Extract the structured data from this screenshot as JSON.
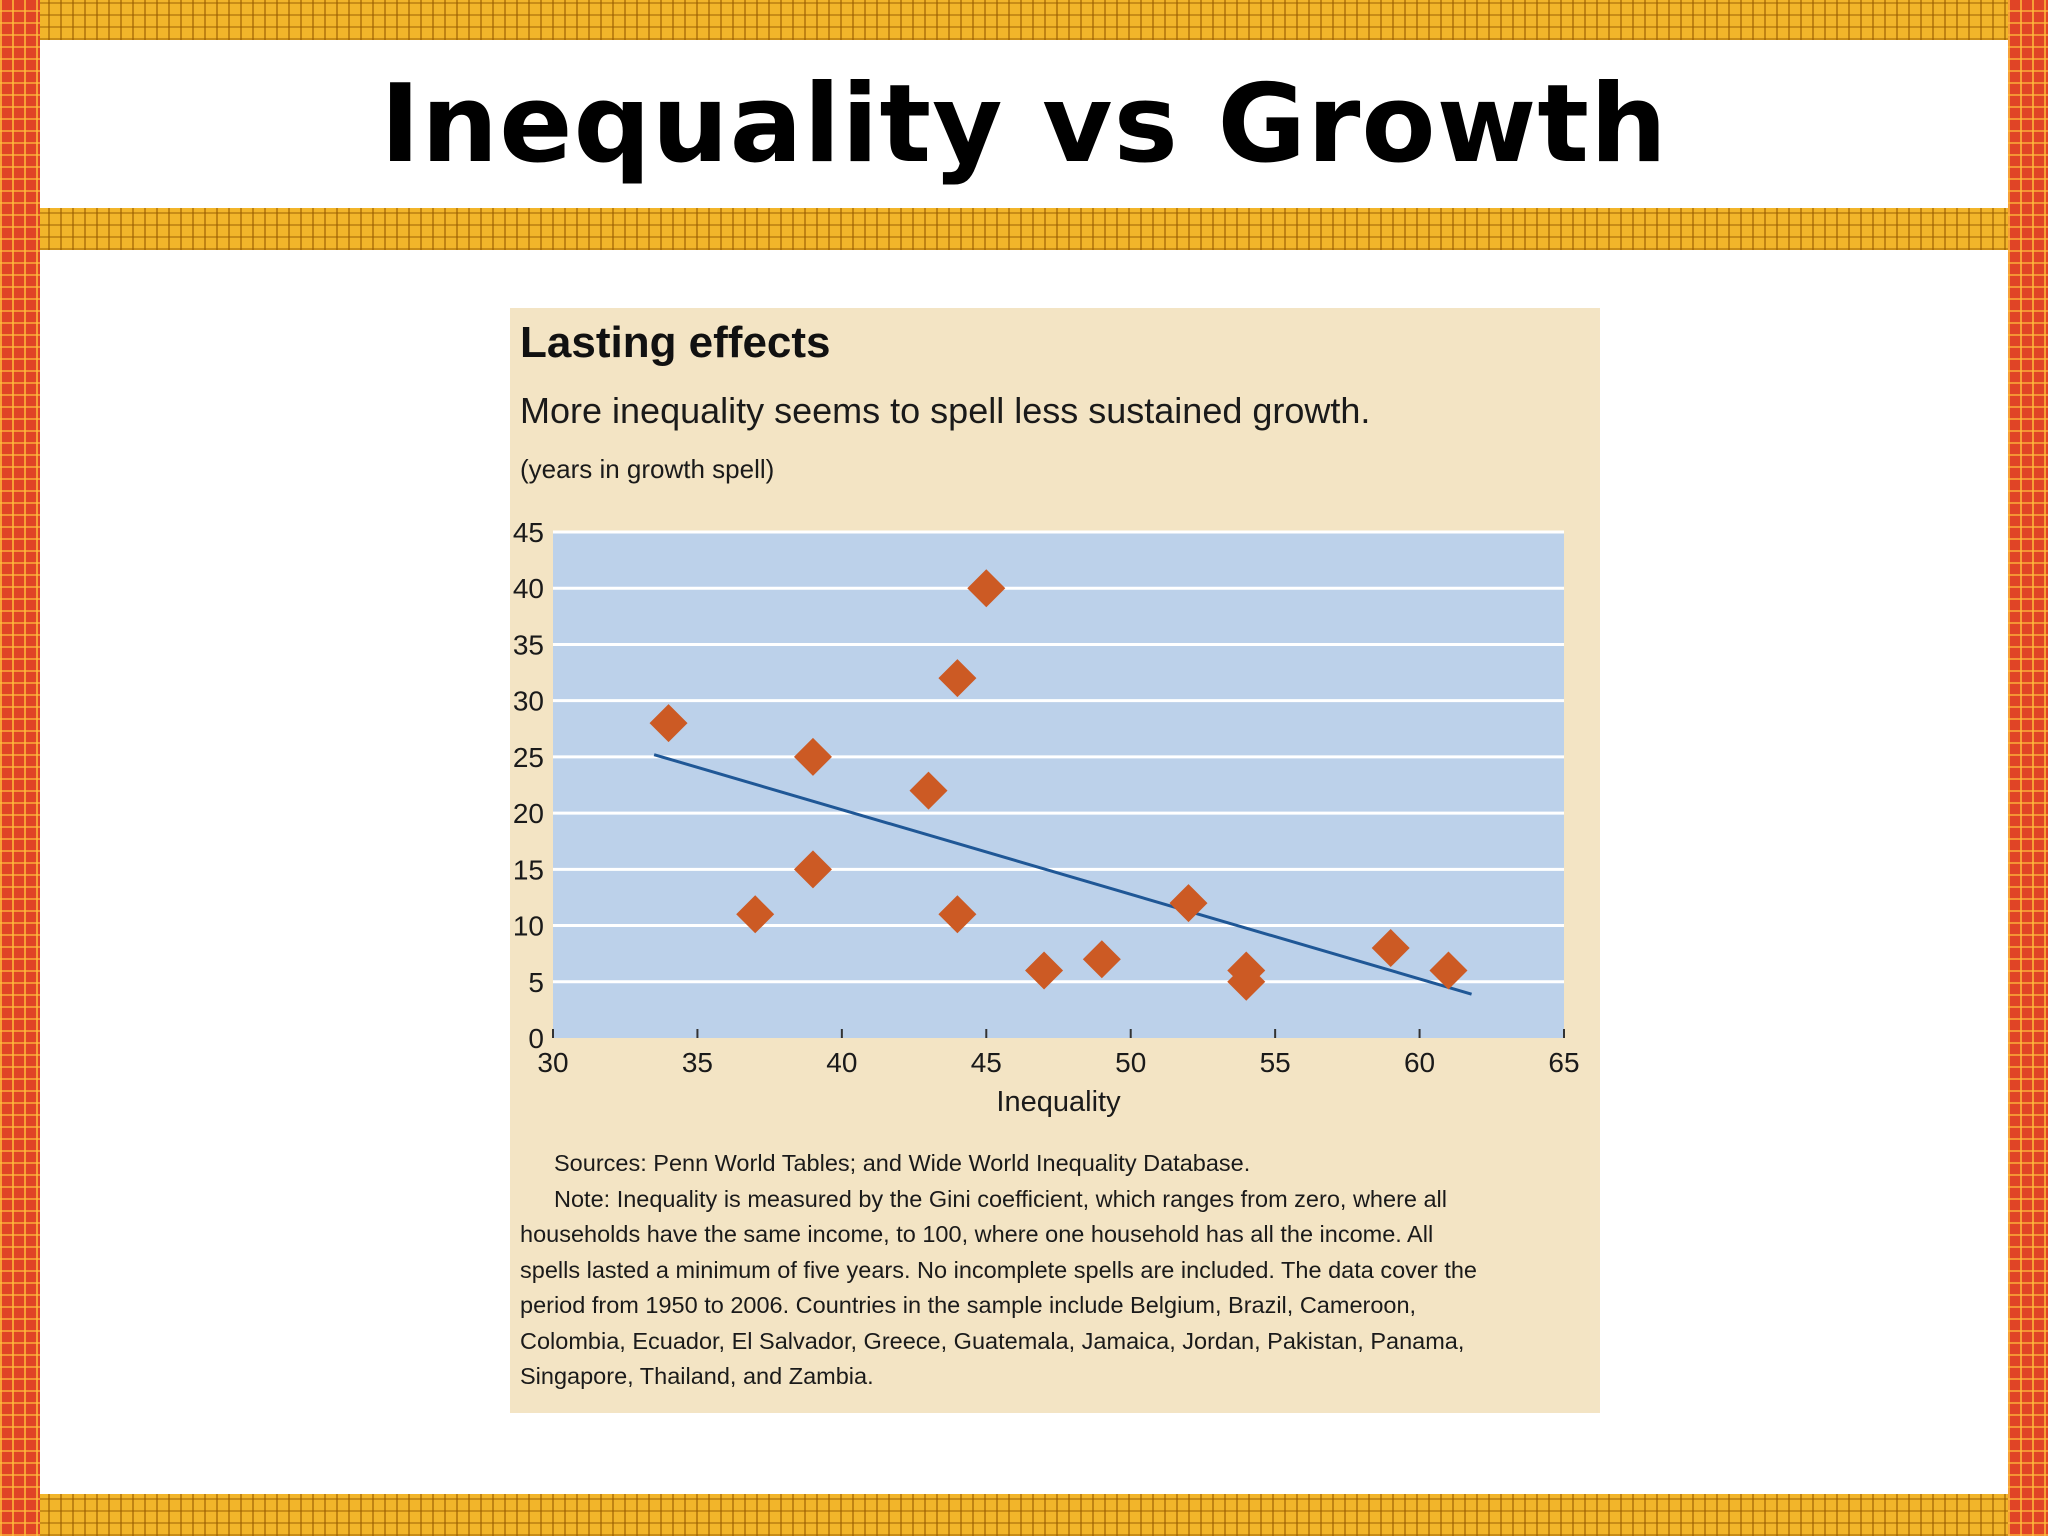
{
  "slide": {
    "title": "Inequality vs Growth",
    "colors": {
      "frame_yellow": "#f2b52a",
      "frame_red": "#e04426",
      "panel": "#f3e4c4",
      "plot_bg": "#bcd1ea"
    }
  },
  "chart_data": {
    "type": "scatter",
    "title": "Lasting effects",
    "subtitle": "More inequality seems to spell less sustained growth.",
    "ylabel": "(years in growth spell)",
    "xlabel": "Inequality",
    "xlim": [
      30,
      65
    ],
    "ylim": [
      0,
      45
    ],
    "xticks": [
      "30",
      "35",
      "40",
      "45",
      "50",
      "55",
      "60",
      "65"
    ],
    "yticks": [
      "0",
      "5",
      "10",
      "15",
      "20",
      "25",
      "30",
      "35",
      "40",
      "45"
    ],
    "grid": true,
    "marker_color": "#cc5a24",
    "trend_color": "#1f5796",
    "points": [
      {
        "x": 34,
        "y": 28
      },
      {
        "x": 37,
        "y": 11
      },
      {
        "x": 39,
        "y": 25
      },
      {
        "x": 39,
        "y": 15
      },
      {
        "x": 43,
        "y": 22
      },
      {
        "x": 44,
        "y": 32
      },
      {
        "x": 44,
        "y": 11
      },
      {
        "x": 45,
        "y": 40
      },
      {
        "x": 47,
        "y": 6
      },
      {
        "x": 49,
        "y": 7
      },
      {
        "x": 52,
        "y": 12
      },
      {
        "x": 54,
        "y": 6
      },
      {
        "x": 54,
        "y": 5
      },
      {
        "x": 59,
        "y": 8
      },
      {
        "x": 61,
        "y": 6
      }
    ],
    "trendline": {
      "x": [
        33.5,
        61.8
      ],
      "y": [
        25.2,
        3.9
      ]
    }
  },
  "notes": {
    "sources": "Sources: Penn World Tables; and Wide World Inequality Database.",
    "note_lines": [
      "Note: Inequality is measured by the Gini coefficient, which ranges from zero, where all",
      "households have the same income, to 100, where one household has all the income. All",
      "spells lasted a minimum of five years. No incomplete spells are included. The data cover the",
      "period from 1950 to 2006. Countries in the sample include Belgium, Brazil, Cameroon,",
      "Colombia, Ecuador, El Salvador, Greece, Guatemala, Jamaica, Jordan, Pakistan, Panama,",
      "Singapore, Thailand, and Zambia."
    ]
  }
}
